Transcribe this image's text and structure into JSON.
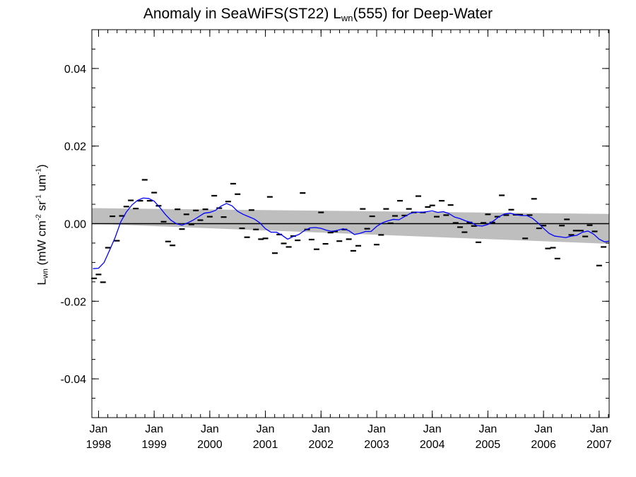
{
  "chart_data": {
    "type": "scatter",
    "title_prefix": "Anomaly in SeaWiFS(ST22) L",
    "title_sub": "wn",
    "title_suffix": "(555) for Deep-Water",
    "ylabel": {
      "symbol": "L",
      "symbol_sub": "wn",
      "units_1": " (mW cm",
      "exp_1": "-2",
      "units_2": " sr",
      "exp_2": "-1",
      "units_3": " um",
      "exp_3": "-1",
      "units_4": ")"
    },
    "ylim": [
      -0.05,
      0.05
    ],
    "xlim": [
      1997.88,
      2007.18
    ],
    "y_ticks": [
      {
        "value": 0.04,
        "label": "0.04"
      },
      {
        "value": 0.02,
        "label": "0.02"
      },
      {
        "value": 0.0,
        "label": "0.00"
      },
      {
        "value": -0.02,
        "label": "-0.02"
      },
      {
        "value": -0.04,
        "label": "-0.04"
      }
    ],
    "x_ticks": [
      {
        "value": 1998.0,
        "month": "Jan",
        "year": "1998"
      },
      {
        "value": 1999.0,
        "month": "Jan",
        "year": "1999"
      },
      {
        "value": 2000.0,
        "month": "Jan",
        "year": "2000"
      },
      {
        "value": 2001.0,
        "month": "Jan",
        "year": "2001"
      },
      {
        "value": 2002.0,
        "month": "Jan",
        "year": "2002"
      },
      {
        "value": 2003.0,
        "month": "Jan",
        "year": "2003"
      },
      {
        "value": 2004.0,
        "month": "Jan",
        "year": "2004"
      },
      {
        "value": 2005.0,
        "month": "Jan",
        "year": "2005"
      },
      {
        "value": 2006.0,
        "month": "Jan",
        "year": "2006"
      },
      {
        "value": 2007.0,
        "month": "Jan",
        "year": "2007"
      }
    ],
    "zero_line": 0.0,
    "uncertainty_band": {
      "color": "#bebebe",
      "upper": [
        [
          1997.88,
          0.004
        ],
        [
          2007.18,
          0.0025
        ]
      ],
      "lower": [
        [
          1997.88,
          0.0
        ],
        [
          2007.18,
          -0.0052
        ]
      ]
    },
    "series": [
      {
        "kind": "points",
        "color": "#000000",
        "points": [
          [
            1997.92,
            -0.0141
          ],
          [
            1998.0,
            -0.0131
          ],
          [
            1998.08,
            -0.0151
          ],
          [
            1998.17,
            -0.0062
          ],
          [
            1998.25,
            0.0019
          ],
          [
            1998.33,
            -0.0044
          ],
          [
            1998.42,
            0.002
          ],
          [
            1998.5,
            0.0044
          ],
          [
            1998.58,
            0.006
          ],
          [
            1998.67,
            0.0039
          ],
          [
            1998.75,
            0.0059
          ],
          [
            1998.83,
            0.0113
          ],
          [
            1998.92,
            0.0059
          ],
          [
            1999.0,
            0.008
          ],
          [
            1999.08,
            0.0046
          ],
          [
            1999.17,
            0.0005
          ],
          [
            1999.25,
            -0.0046
          ],
          [
            1999.33,
            -0.0056
          ],
          [
            1999.42,
            0.0037
          ],
          [
            1999.5,
            -0.0014
          ],
          [
            1999.58,
            0.0024
          ],
          [
            1999.67,
            -0.0002
          ],
          [
            1999.75,
            0.0034
          ],
          [
            1999.83,
            0.0009
          ],
          [
            1999.92,
            0.0037
          ],
          [
            2000.0,
            0.0018
          ],
          [
            2000.08,
            0.0072
          ],
          [
            2000.17,
            0.004
          ],
          [
            2000.25,
            0.0017
          ],
          [
            2000.33,
            0.0057
          ],
          [
            2000.42,
            0.0103
          ],
          [
            2000.5,
            0.0076
          ],
          [
            2000.58,
            -0.0012
          ],
          [
            2000.67,
            -0.0035
          ],
          [
            2000.75,
            0.0035
          ],
          [
            2000.83,
            -0.0015
          ],
          [
            2000.92,
            -0.004
          ],
          [
            2001.0,
            -0.0038
          ],
          [
            2001.08,
            0.0069
          ],
          [
            2001.17,
            -0.0076
          ],
          [
            2001.25,
            -0.0028
          ],
          [
            2001.33,
            -0.0051
          ],
          [
            2001.42,
            -0.006
          ],
          [
            2001.5,
            -0.0032
          ],
          [
            2001.58,
            -0.0043
          ],
          [
            2001.67,
            0.0079
          ],
          [
            2001.75,
            -0.0015
          ],
          [
            2001.83,
            -0.0041
          ],
          [
            2001.92,
            -0.0066
          ],
          [
            2002.0,
            0.0029
          ],
          [
            2002.08,
            -0.0052
          ],
          [
            2002.17,
            -0.0023
          ],
          [
            2002.25,
            -0.002
          ],
          [
            2002.33,
            -0.0045
          ],
          [
            2002.42,
            -0.0015
          ],
          [
            2002.5,
            -0.004
          ],
          [
            2002.58,
            -0.007
          ],
          [
            2002.67,
            -0.0057
          ],
          [
            2002.75,
            0.0038
          ],
          [
            2002.83,
            -0.0013
          ],
          [
            2002.92,
            0.0019
          ],
          [
            2003.0,
            -0.0054
          ],
          [
            2003.08,
            -0.0029
          ],
          [
            2003.17,
            0.0038
          ],
          [
            2003.25,
            0.0001
          ],
          [
            2003.33,
            0.002
          ],
          [
            2003.42,
            0.0059
          ],
          [
            2003.5,
            0.0021
          ],
          [
            2003.58,
            0.0038
          ],
          [
            2003.67,
            0.0029
          ],
          [
            2003.75,
            0.0071
          ],
          [
            2003.83,
            0.0029
          ],
          [
            2003.92,
            0.0043
          ],
          [
            2004.0,
            0.0047
          ],
          [
            2004.08,
            0.0018
          ],
          [
            2004.17,
            0.0059
          ],
          [
            2004.25,
            0.0022
          ],
          [
            2004.33,
            0.0048
          ],
          [
            2004.42,
            0.0002
          ],
          [
            2004.5,
            -0.0009
          ],
          [
            2004.58,
            -0.0022
          ],
          [
            2004.67,
            0.0003
          ],
          [
            2004.75,
            -0.0006
          ],
          [
            2004.83,
            -0.0048
          ],
          [
            2004.92,
            0.0002
          ],
          [
            2005.0,
            0.0024
          ],
          [
            2005.08,
            0.0003
          ],
          [
            2005.17,
            0.0018
          ],
          [
            2005.25,
            0.0073
          ],
          [
            2005.33,
            0.0022
          ],
          [
            2005.42,
            0.0036
          ],
          [
            2005.5,
            0.0023
          ],
          [
            2005.58,
            0.0023
          ],
          [
            2005.67,
            -0.0038
          ],
          [
            2005.75,
            0.0022
          ],
          [
            2005.83,
            0.0064
          ],
          [
            2005.92,
            -0.0012
          ],
          [
            2006.0,
            -0.0005
          ],
          [
            2006.08,
            -0.0064
          ],
          [
            2006.17,
            -0.0062
          ],
          [
            2006.25,
            -0.009
          ],
          [
            2006.33,
            -0.0005
          ],
          [
            2006.42,
            0.0011
          ],
          [
            2006.5,
            -0.0029
          ],
          [
            2006.58,
            -0.0018
          ],
          [
            2006.67,
            -0.0018
          ],
          [
            2006.75,
            -0.0033
          ],
          [
            2006.83,
            -0.0004
          ],
          [
            2006.92,
            -0.002
          ],
          [
            2007.0,
            -0.0108
          ],
          [
            2007.08,
            -0.006
          ]
        ]
      },
      {
        "kind": "smoothed-line",
        "color": "#0000ff",
        "points": [
          [
            1997.9,
            -0.0116
          ],
          [
            1998.0,
            -0.0115
          ],
          [
            1998.1,
            -0.01
          ],
          [
            1998.2,
            -0.0068
          ],
          [
            1998.3,
            -0.0035
          ],
          [
            1998.4,
            0.0005
          ],
          [
            1998.5,
            0.003
          ],
          [
            1998.6,
            0.0048
          ],
          [
            1998.7,
            0.006
          ],
          [
            1998.8,
            0.0066
          ],
          [
            1998.9,
            0.0065
          ],
          [
            1999.0,
            0.0058
          ],
          [
            1999.1,
            0.0042
          ],
          [
            1999.2,
            0.0024
          ],
          [
            1999.3,
            0.0009
          ],
          [
            1999.4,
            0.0
          ],
          [
            1999.5,
            -0.0004
          ],
          [
            1999.6,
            0.0002
          ],
          [
            1999.7,
            0.0009
          ],
          [
            1999.8,
            0.0018
          ],
          [
            1999.9,
            0.0027
          ],
          [
            2000.0,
            0.0029
          ],
          [
            2000.1,
            0.0034
          ],
          [
            2000.2,
            0.0045
          ],
          [
            2000.3,
            0.0052
          ],
          [
            2000.4,
            0.0046
          ],
          [
            2000.5,
            0.0032
          ],
          [
            2000.6,
            0.0024
          ],
          [
            2000.7,
            0.0018
          ],
          [
            2000.8,
            0.0012
          ],
          [
            2000.9,
            0.0002
          ],
          [
            2001.0,
            -0.0013
          ],
          [
            2001.1,
            -0.0022
          ],
          [
            2001.2,
            -0.0022
          ],
          [
            2001.3,
            -0.003
          ],
          [
            2001.4,
            -0.004
          ],
          [
            2001.5,
            -0.0033
          ],
          [
            2001.6,
            -0.0028
          ],
          [
            2001.7,
            -0.0018
          ],
          [
            2001.8,
            -0.0011
          ],
          [
            2001.9,
            -0.001
          ],
          [
            2002.0,
            -0.0012
          ],
          [
            2002.1,
            -0.0017
          ],
          [
            2002.2,
            -0.002
          ],
          [
            2002.3,
            -0.0017
          ],
          [
            2002.4,
            -0.0013
          ],
          [
            2002.5,
            -0.0018
          ],
          [
            2002.6,
            -0.0028
          ],
          [
            2002.7,
            -0.0025
          ],
          [
            2002.8,
            -0.002
          ],
          [
            2002.9,
            -0.002
          ],
          [
            2003.0,
            -0.0007
          ],
          [
            2003.1,
            0.0002
          ],
          [
            2003.2,
            0.0007
          ],
          [
            2003.3,
            0.0011
          ],
          [
            2003.4,
            0.001
          ],
          [
            2003.5,
            0.0018
          ],
          [
            2003.6,
            0.0026
          ],
          [
            2003.7,
            0.003
          ],
          [
            2003.8,
            0.0029
          ],
          [
            2003.9,
            0.0031
          ],
          [
            2004.0,
            0.0033
          ],
          [
            2004.1,
            0.0029
          ],
          [
            2004.2,
            0.0031
          ],
          [
            2004.3,
            0.0026
          ],
          [
            2004.4,
            0.0017
          ],
          [
            2004.5,
            0.0013
          ],
          [
            2004.6,
            0.0007
          ],
          [
            2004.7,
            0.0003
          ],
          [
            2004.8,
            -0.0005
          ],
          [
            2004.9,
            -0.0006
          ],
          [
            2005.0,
            -0.0002
          ],
          [
            2005.1,
            0.0007
          ],
          [
            2005.2,
            0.0018
          ],
          [
            2005.3,
            0.0025
          ],
          [
            2005.4,
            0.0027
          ],
          [
            2005.5,
            0.0023
          ],
          [
            2005.6,
            0.0021
          ],
          [
            2005.7,
            0.0021
          ],
          [
            2005.8,
            0.0014
          ],
          [
            2005.9,
            0.0002
          ],
          [
            2006.0,
            -0.0012
          ],
          [
            2006.1,
            -0.0025
          ],
          [
            2006.2,
            -0.0032
          ],
          [
            2006.3,
            -0.0034
          ],
          [
            2006.4,
            -0.0036
          ],
          [
            2006.5,
            -0.0032
          ],
          [
            2006.6,
            -0.003
          ],
          [
            2006.7,
            -0.0022
          ],
          [
            2006.8,
            -0.0019
          ],
          [
            2006.9,
            -0.0027
          ],
          [
            2007.0,
            -0.004
          ],
          [
            2007.1,
            -0.0047
          ],
          [
            2007.18,
            -0.0045
          ]
        ]
      }
    ]
  }
}
